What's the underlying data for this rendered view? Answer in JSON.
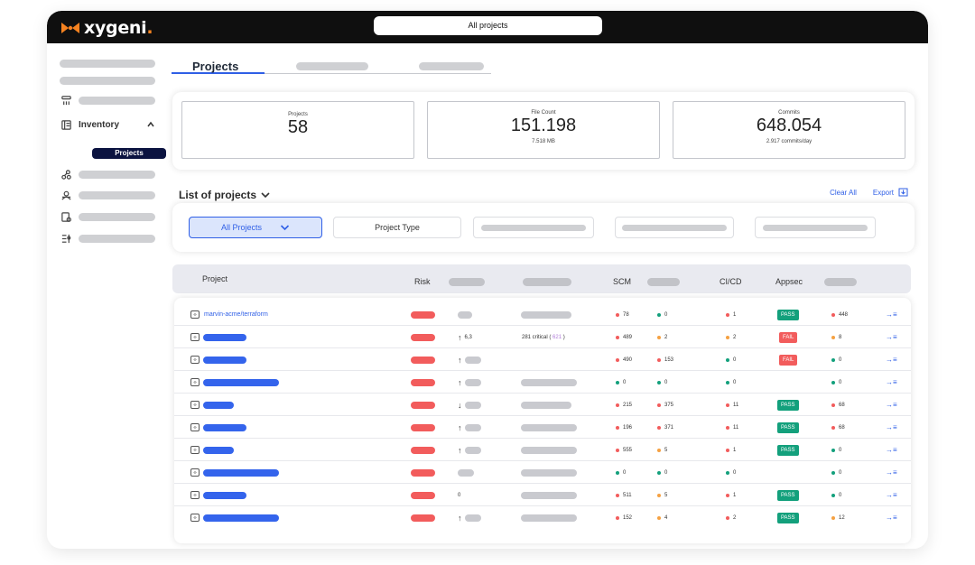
{
  "brand": {
    "name": "xygeni",
    "dot": ".",
    "colors": {
      "orange": "#f58220",
      "accent": "#2f5fe6",
      "navy": "#0b1340"
    }
  },
  "header": {
    "project_selector": "All projects"
  },
  "sidebar": {
    "inventory_label": "Inventory",
    "projects_label": "Projects"
  },
  "tabs": {
    "active": "Projects"
  },
  "stats": [
    {
      "label": "Projects",
      "value": "58",
      "sub": ""
    },
    {
      "label": "File Count",
      "value": "151.198",
      "sub": "7.518 MB"
    },
    {
      "label": "Commits",
      "value": "648.054",
      "sub": "2.917 commits/day"
    }
  ],
  "list": {
    "title": "List of projects",
    "clear_all": "Clear All",
    "export": "Export"
  },
  "filters": {
    "all_projects": "All Projects",
    "project_type": "Project Type"
  },
  "table": {
    "headers": {
      "project": "Project",
      "risk": "Risk",
      "scm": "SCM",
      "cicd": "CI/CD",
      "appsec": "Appsec"
    },
    "rows": [
      {
        "name": "marvin-acme/terraform",
        "trend": "",
        "trend_value": "",
        "critical": "",
        "critical_extra": "",
        "scm": "78",
        "scm_color": "#f25c5c",
        "g": "0",
        "g_color": "#13a07c",
        "cicd": "1",
        "cicd_color": "#f25c5c",
        "appsec": "PASS",
        "last": "448",
        "last_color": "#f25c5c"
      },
      {
        "name": "",
        "trend": "↑",
        "trend_value": "6,3",
        "critical": "281 critical (",
        "critical_extra": "621",
        "critical_close": ")",
        "scm": "489",
        "scm_color": "#f25c5c",
        "g": "2",
        "g_color": "#f5a142",
        "cicd": "2",
        "cicd_color": "#f5a142",
        "appsec": "FAIL",
        "last": "8",
        "last_color": "#f5a142"
      },
      {
        "name": "",
        "trend": "↑",
        "trend_value": "",
        "critical": "",
        "critical_extra": "",
        "scm": "490",
        "scm_color": "#f25c5c",
        "g": "153",
        "g_color": "#f25c5c",
        "cicd": "0",
        "cicd_color": "#13a07c",
        "appsec": "FAIL",
        "last": "0",
        "last_color": "#13a07c"
      },
      {
        "name": "",
        "trend": "↑",
        "trend_value": "",
        "critical": "",
        "critical_extra": "",
        "scm": "0",
        "scm_color": "#13a07c",
        "g": "0",
        "g_color": "#13a07c",
        "cicd": "0",
        "cicd_color": "#13a07c",
        "appsec": "",
        "last": "0",
        "last_color": "#13a07c"
      },
      {
        "name": "",
        "trend": "↓",
        "trend_value": "",
        "critical": "",
        "critical_extra": "",
        "scm": "215",
        "scm_color": "#f25c5c",
        "g": "375",
        "g_color": "#f25c5c",
        "cicd": "11",
        "cicd_color": "#f25c5c",
        "appsec": "PASS",
        "last": "68",
        "last_color": "#f25c5c"
      },
      {
        "name": "",
        "trend": "↑",
        "trend_value": "",
        "critical": "",
        "critical_extra": "",
        "scm": "196",
        "scm_color": "#f25c5c",
        "g": "371",
        "g_color": "#f25c5c",
        "cicd": "11",
        "cicd_color": "#f25c5c",
        "appsec": "PASS",
        "last": "68",
        "last_color": "#f25c5c"
      },
      {
        "name": "",
        "trend": "↑",
        "trend_value": "",
        "critical": "",
        "critical_extra": "",
        "scm": "555",
        "scm_color": "#f25c5c",
        "g": "5",
        "g_color": "#f5a142",
        "cicd": "1",
        "cicd_color": "#f25c5c",
        "appsec": "PASS",
        "last": "0",
        "last_color": "#13a07c"
      },
      {
        "name": "",
        "trend": "",
        "trend_value": "",
        "critical": "",
        "critical_extra": "",
        "scm": "0",
        "scm_color": "#13a07c",
        "g": "0",
        "g_color": "#13a07c",
        "cicd": "0",
        "cicd_color": "#13a07c",
        "appsec": "",
        "last": "0",
        "last_color": "#13a07c"
      },
      {
        "name": "",
        "trend": "",
        "trend_value": "0",
        "critical": "",
        "critical_extra": "",
        "scm": "511",
        "scm_color": "#f25c5c",
        "g": "5",
        "g_color": "#f5a142",
        "cicd": "1",
        "cicd_color": "#f25c5c",
        "appsec": "PASS",
        "last": "0",
        "last_color": "#13a07c"
      },
      {
        "name": "",
        "trend": "↑",
        "trend_value": "",
        "critical": "",
        "critical_extra": "",
        "scm": "152",
        "scm_color": "#f25c5c",
        "g": "4",
        "g_color": "#f5a142",
        "cicd": "2",
        "cicd_color": "#f25c5c",
        "appsec": "PASS",
        "last": "12",
        "last_color": "#f5a142"
      }
    ]
  }
}
